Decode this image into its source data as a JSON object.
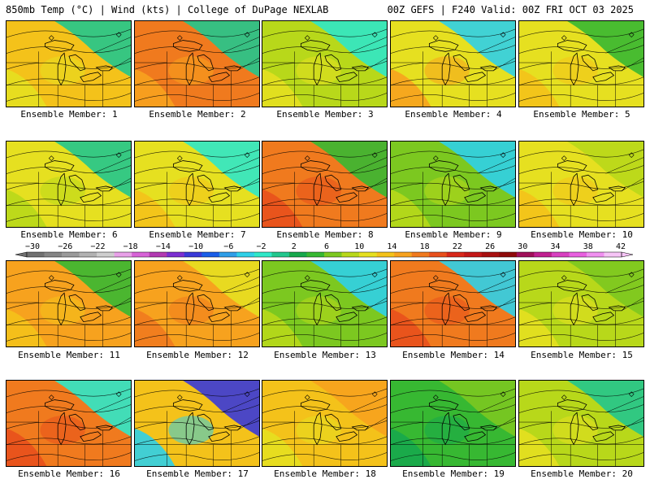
{
  "header": {
    "left": "850mb Temp (°C) | Wind (kts) | College of DuPage NEXLAB",
    "right": "00Z GEFS | F240 Valid: 00Z FRI OCT 03 2025"
  },
  "colorbar": {
    "labels": [
      "−30",
      "−26",
      "−22",
      "−18",
      "−14",
      "−10",
      "−6",
      "−2",
      "2",
      "6",
      "10",
      "14",
      "18",
      "22",
      "26",
      "30",
      "34",
      "38",
      "42"
    ],
    "colors": [
      "#707070",
      "#858585",
      "#9a9a9a",
      "#b2b2b2",
      "#cecece",
      "#e8a0e8",
      "#d763d7",
      "#b23ab2",
      "#7b2fd1",
      "#3a3ad8",
      "#1a5ee8",
      "#2f9ee8",
      "#2fd0e8",
      "#2fe8c8",
      "#22c78d",
      "#17a84c",
      "#37b832",
      "#7cc820",
      "#b8d81a",
      "#e6e020",
      "#f4c21a",
      "#f7a21e",
      "#f07a1e",
      "#e8501c",
      "#d8281a",
      "#c41818",
      "#a81010",
      "#8e0a0a",
      "#a0105a",
      "#c02090",
      "#d840c0",
      "#e860e0",
      "#f090f0",
      "#f6c4f6"
    ]
  },
  "members": [
    {
      "label": "Ensemble Member: 1"
    },
    {
      "label": "Ensemble Member: 2"
    },
    {
      "label": "Ensemble Member: 3"
    },
    {
      "label": "Ensemble Member: 4"
    },
    {
      "label": "Ensemble Member: 5"
    },
    {
      "label": "Ensemble Member: 6"
    },
    {
      "label": "Ensemble Member: 7"
    },
    {
      "label": "Ensemble Member: 8"
    },
    {
      "label": "Ensemble Member: 9"
    },
    {
      "label": "Ensemble Member: 10"
    },
    {
      "label": "Ensemble Member: 11"
    },
    {
      "label": "Ensemble Member: 12"
    },
    {
      "label": "Ensemble Member: 13"
    },
    {
      "label": "Ensemble Member: 14"
    },
    {
      "label": "Ensemble Member: 15"
    },
    {
      "label": "Ensemble Member: 16"
    },
    {
      "label": "Ensemble Member: 17"
    },
    {
      "label": "Ensemble Member: 18"
    },
    {
      "label": "Ensemble Member: 19"
    },
    {
      "label": "Ensemble Member: 20"
    }
  ]
}
